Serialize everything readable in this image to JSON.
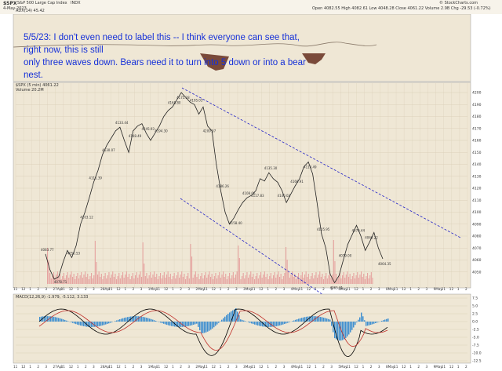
{
  "header": {
    "symbol": "$SPX",
    "name": "S&P 500 Large Cap Index",
    "exchange": "INDX",
    "date": "4-May-2023",
    "ohlc": "Open 4082.55  High 4082.61  Low 4048.28  Close 4061.22  Volume 2.9B  Chg -29.53 (-0.72%)",
    "credit": "© StockCharts.com"
  },
  "annotation": {
    "line1": "5/5/23:  I don't even need to label this -- I think everyone can see that, right now, this is still",
    "line2": "only three waves down.    Bears need it to turn into 5 down or into a bear nest."
  },
  "panels": {
    "adx_label": "ADX(14) 45.42",
    "price_label": "$SPX (5 min) 4061.22",
    "volume_label": "Volume 20.2M",
    "macd_label": "MACD(12,26,9) -1.979, -5.112, 3.133"
  },
  "colors": {
    "background": "#efe7d5",
    "price_line": "#222222",
    "channel_line": "#2020c8",
    "volume": "#e6a3a0",
    "macd_hist": "#3f8fd0",
    "adx_fill": "#7a4a3a"
  },
  "chart_data": {
    "type": "line",
    "title": "S&P 500 Large Cap Index",
    "price_axis": {
      "ylim": [
        4040,
        4200
      ],
      "ticks": [
        4050,
        4060,
        4070,
        4080,
        4090,
        4100,
        4110,
        4120,
        4130,
        4140,
        4150,
        4160,
        4170,
        4180,
        4190,
        4200
      ]
    },
    "macd_axis": {
      "ticks": [
        7.5,
        5.0,
        2.5,
        0.0,
        -2.5,
        -5.0,
        -7.5,
        -10.0,
        -12.5
      ]
    },
    "x_ticks": [
      "11",
      "12",
      "1",
      "2",
      "3",
      "27Apr",
      "11",
      "12",
      "1",
      "2",
      "3",
      "28Apr",
      "11",
      "12",
      "1",
      "2",
      "3",
      "1May",
      "11",
      "12",
      "1",
      "2",
      "3",
      "2May",
      "11",
      "12",
      "1",
      "2",
      "3",
      "3May",
      "11",
      "12",
      "1",
      "2",
      "3",
      "4May",
      "11",
      "12",
      "1",
      "2",
      "3",
      "5May",
      "11",
      "12",
      "1",
      "2",
      "3",
      "8May",
      "11",
      "12",
      "1",
      "2",
      "3",
      "9May",
      "11",
      "12",
      "1",
      "2"
    ],
    "series": [
      {
        "values": [
          4065,
          4052,
          4044,
          4046,
          4058,
          4068,
          4062,
          4072,
          4090,
          4100,
          4112,
          4125,
          4135,
          4148,
          4156,
          4162,
          4168,
          4171,
          4160,
          4150,
          4168,
          4172,
          4174,
          4166,
          4160,
          4166,
          4172,
          4180,
          4185,
          4188,
          4194,
          4200,
          4196,
          4192,
          4190,
          4182,
          4188,
          4172,
          4168,
          4140,
          4118,
          4100,
          4090,
          4095,
          4102,
          4108,
          4112,
          4114,
          4118,
          4128,
          4126,
          4133,
          4128,
          4125,
          4118,
          4108,
          4115,
          4122,
          4128,
          4138,
          4142,
          4132,
          4108,
          4082,
          4070,
          4048,
          4041,
          4047,
          4060,
          4073,
          4081,
          4089,
          4080,
          4068,
          4075,
          4083,
          4070,
          4061
        ]
      }
    ],
    "price_labels": [
      "4083.77",
      "4078.71",
      "4050.53",
      "4103.12",
      "4111.39",
      "4130.07",
      "4133.44",
      "4148.49",
      "4145.93",
      "4194.30",
      "4168.80",
      "4175.28",
      "4195.03",
      "4209.07",
      "4186.26",
      "4158.40",
      "4108.06",
      "4117.83",
      "4135.30",
      "4140.02",
      "4166.91",
      "4110.49",
      "4105.95",
      "4065.31",
      "4079.00",
      "4076.44",
      "4060.22",
      "4064.35"
    ]
  }
}
